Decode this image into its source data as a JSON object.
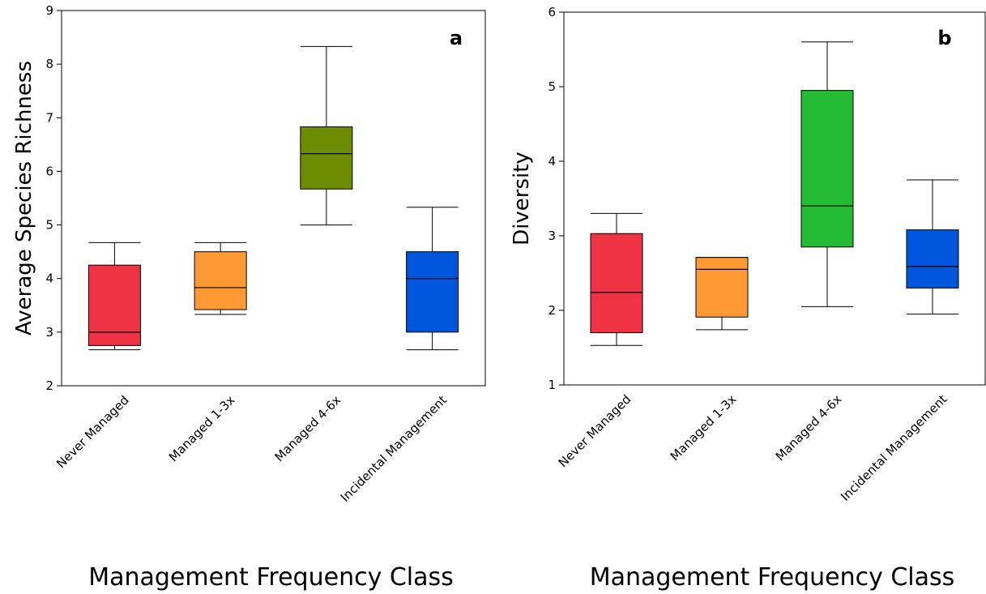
{
  "chart_data": [
    {
      "type": "box",
      "panel_letter": "a",
      "ylabel": "Average Species Richness",
      "xlabel": "Management Frequency Class",
      "ylim": [
        2,
        9
      ],
      "yticks": [
        2,
        3,
        4,
        5,
        6,
        7,
        8,
        9
      ],
      "grid": false,
      "categories": [
        "Never Managed",
        "Managed 1-3x",
        "Managed 4-6x",
        "Incidental Management"
      ],
      "colors": [
        "#ee3344",
        "#ff9933",
        "#6e8c00",
        "#0055dd"
      ],
      "boxes": [
        {
          "min": 2.67,
          "q1": 2.75,
          "median": 3.0,
          "q3": 4.25,
          "max": 4.67
        },
        {
          "min": 3.33,
          "q1": 3.42,
          "median": 3.83,
          "q3": 4.5,
          "max": 4.67
        },
        {
          "min": 5.0,
          "q1": 5.67,
          "median": 6.33,
          "q3": 6.83,
          "max": 8.33
        },
        {
          "min": 2.67,
          "q1": 3.0,
          "median": 4.0,
          "q3": 4.5,
          "max": 5.33
        }
      ]
    },
    {
      "type": "box",
      "panel_letter": "b",
      "ylabel": "Diversity",
      "xlabel": "Management Frequency Class",
      "ylim": [
        1,
        6
      ],
      "yticks": [
        1,
        2,
        3,
        4,
        5,
        6
      ],
      "grid": false,
      "categories": [
        "Never Managed",
        "Managed 1-3x",
        "Managed 4-6x",
        "Incidental Management"
      ],
      "colors": [
        "#ee3344",
        "#ff9933",
        "#22bb33",
        "#0055dd"
      ],
      "boxes": [
        {
          "min": 1.53,
          "q1": 1.7,
          "median": 2.24,
          "q3": 3.03,
          "max": 3.3
        },
        {
          "min": 1.74,
          "q1": 1.91,
          "median": 2.55,
          "q3": 2.71,
          "max": 2.71
        },
        {
          "min": 2.05,
          "q1": 2.85,
          "median": 3.4,
          "q3": 4.95,
          "max": 5.6
        },
        {
          "min": 1.95,
          "q1": 2.3,
          "median": 2.59,
          "q3": 3.08,
          "max": 3.75
        }
      ]
    }
  ]
}
